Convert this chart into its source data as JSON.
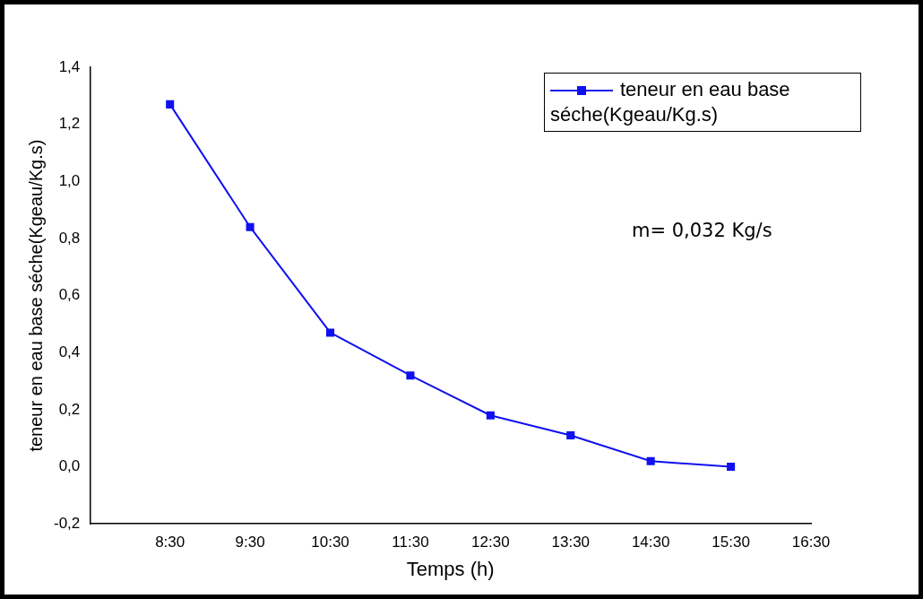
{
  "chart_data": {
    "type": "line",
    "xlabel": "Temps (h)",
    "ylabel": "teneur en eau base séche(Kgeau/Kg.s)",
    "x": [
      8.5,
      9.5,
      10.5,
      11.5,
      12.5,
      13.5,
      14.5,
      15.5
    ],
    "series": [
      {
        "name": "teneur en eau base séche(Kgeau/Kg.s)",
        "color": "#1010f0",
        "values": [
          1.27,
          0.84,
          0.47,
          0.32,
          0.18,
          0.11,
          0.02,
          0.0
        ]
      }
    ],
    "xlim": [
      7.5,
      16.5
    ],
    "xticks": [
      {
        "value": 8.5,
        "label": "8:30"
      },
      {
        "value": 9.5,
        "label": "9:30"
      },
      {
        "value": 10.5,
        "label": "10:30"
      },
      {
        "value": 11.5,
        "label": "11:30"
      },
      {
        "value": 12.5,
        "label": "12:30"
      },
      {
        "value": 13.5,
        "label": "13:30"
      },
      {
        "value": 14.5,
        "label": "14:30"
      },
      {
        "value": 15.5,
        "label": "15:30"
      },
      {
        "value": 16.5,
        "label": "16:30"
      }
    ],
    "ylim": [
      -0.2,
      1.4
    ],
    "yticks": [
      {
        "value": -0.2,
        "label": "-0,2"
      },
      {
        "value": 0,
        "label": "0,0"
      },
      {
        "value": 0.2,
        "label": "0,2"
      },
      {
        "value": 0.4,
        "label": "0,4"
      },
      {
        "value": 0.6,
        "label": "0,6"
      },
      {
        "value": 0.8,
        "label": "0,8"
      },
      {
        "value": 1.0,
        "label": "1,0"
      },
      {
        "value": 1.2,
        "label": "1,2"
      },
      {
        "value": 1.4,
        "label": "1,4"
      }
    ],
    "annotations": [
      "m= 0,032 Kg/s"
    ],
    "legend": "top right",
    "marker": "square",
    "line_style": "solid",
    "grid": false
  }
}
